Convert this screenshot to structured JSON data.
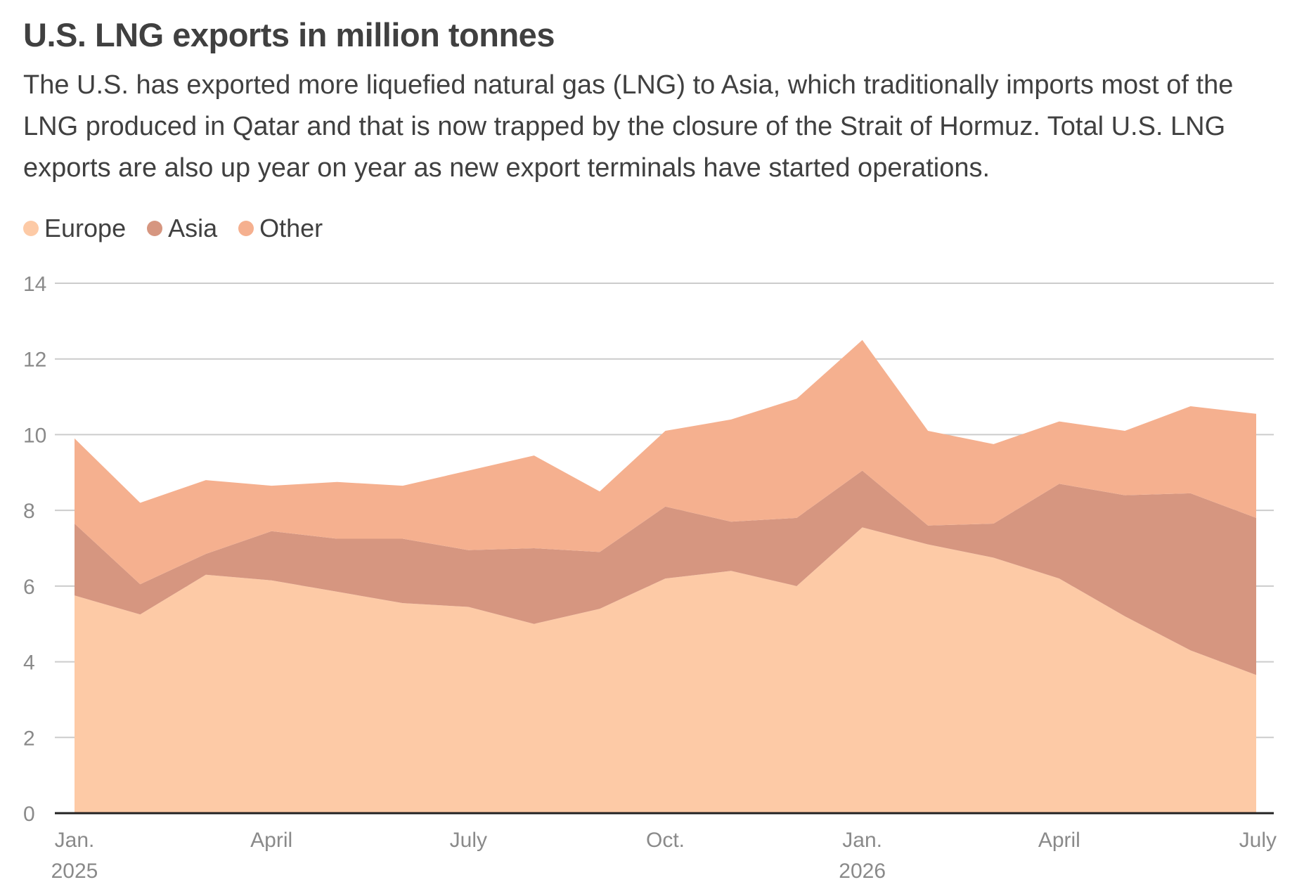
{
  "title": "U.S. LNG exports in million tonnes",
  "subtitle": "The U.S. has exported more liquefied natural gas (LNG) to Asia, which traditionally imports most of the LNG produced in Qatar and that is now trapped by the closure of the Strait of Hormuz. Total U.S. LNG exports are also up year on year as new export terminals have started operations.",
  "legend": [
    {
      "label": "Europe",
      "color": "#fdcaa6"
    },
    {
      "label": "Asia",
      "color": "#d69680"
    },
    {
      "label": "Other",
      "color": "#f5b08f"
    }
  ],
  "chart_data": {
    "type": "area",
    "stacked": true,
    "x": [
      "2025-01",
      "2025-02",
      "2025-03",
      "2025-04",
      "2025-05",
      "2025-06",
      "2025-07",
      "2025-08",
      "2025-09",
      "2025-10",
      "2025-11",
      "2025-12",
      "2026-01",
      "2026-02",
      "2026-03",
      "2026-04",
      "2026-05",
      "2026-06",
      "2026-07"
    ],
    "series": [
      {
        "name": "Europe",
        "color": "#fdcaa6",
        "values": [
          5.75,
          5.25,
          6.3,
          6.15,
          5.85,
          5.55,
          5.45,
          5.0,
          5.4,
          6.2,
          6.4,
          6.0,
          7.55,
          7.1,
          6.75,
          6.2,
          5.2,
          4.3,
          3.65
        ]
      },
      {
        "name": "Asia",
        "color": "#d69680",
        "values": [
          1.9,
          0.8,
          0.55,
          1.3,
          1.4,
          1.7,
          1.5,
          2.0,
          1.5,
          1.9,
          1.3,
          1.8,
          1.5,
          0.5,
          0.9,
          2.5,
          3.2,
          4.15,
          4.15
        ]
      },
      {
        "name": "Other",
        "color": "#f5b08f",
        "values": [
          2.25,
          2.15,
          1.95,
          1.2,
          1.5,
          1.4,
          2.1,
          2.45,
          1.6,
          2.0,
          2.7,
          3.15,
          3.45,
          2.5,
          2.1,
          1.65,
          1.7,
          2.3,
          2.75
        ]
      }
    ],
    "ylim": [
      0,
      14
    ],
    "yticks": [
      "0",
      "2",
      "4",
      "6",
      "8",
      "10",
      "12",
      "14"
    ],
    "xticks": [
      {
        "index": 0,
        "label": "Jan.",
        "year": "2025"
      },
      {
        "index": 3,
        "label": "April",
        "year": ""
      },
      {
        "index": 6,
        "label": "July",
        "year": ""
      },
      {
        "index": 9,
        "label": "Oct.",
        "year": ""
      },
      {
        "index": 12,
        "label": "Jan.",
        "year": "2026"
      },
      {
        "index": 15,
        "label": "April",
        "year": ""
      },
      {
        "index": 18,
        "label": "July",
        "year": ""
      }
    ],
    "grid": true,
    "legend_position": "top-left",
    "xlabel": "",
    "ylabel": ""
  }
}
